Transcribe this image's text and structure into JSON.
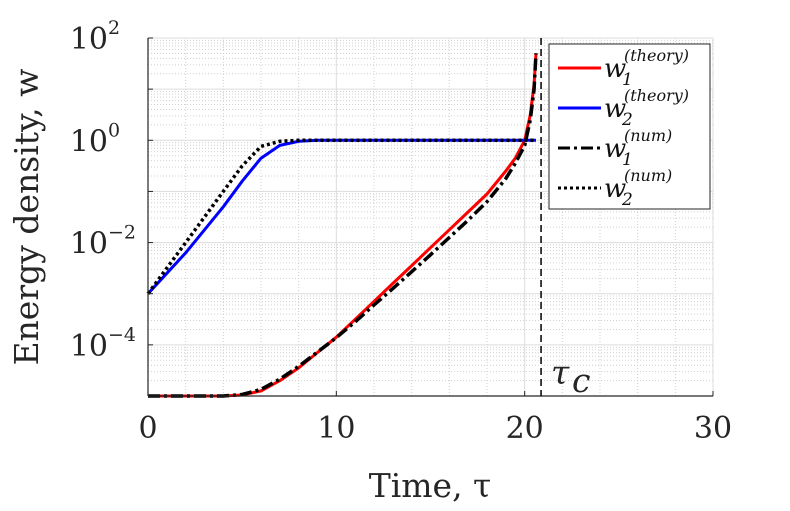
{
  "chart_data": {
    "type": "line",
    "xlabel": "Time, τ",
    "ylabel": "Energy density, w",
    "xlim": [
      0,
      30
    ],
    "ylim": [
      1e-05,
      100
    ],
    "yscale": "log",
    "grid": true,
    "xticks": [
      {
        "value": 0,
        "label": "0"
      },
      {
        "value": 10,
        "label": "10"
      },
      {
        "value": 20,
        "label": "20"
      },
      {
        "value": 30,
        "label": "30"
      }
    ],
    "yticks": [
      {
        "value": 100,
        "base": "10",
        "exp": "2"
      },
      {
        "value": 1,
        "base": "10",
        "exp": "0"
      },
      {
        "value": 0.01,
        "base": "10",
        "exp": "−2"
      },
      {
        "value": 0.0001,
        "base": "10",
        "exp": "−4"
      }
    ],
    "legend_position": "top-right",
    "annotation": {
      "label": "τ",
      "subscript": "c",
      "x": 20.87
    },
    "series": [
      {
        "name": "w1 (theory)",
        "sym": "w",
        "sub": "1",
        "sup": "(theory)",
        "color": "#ff0000",
        "style": "solid",
        "x": [
          0,
          1,
          2,
          3,
          4,
          5,
          6,
          7,
          8,
          9,
          10,
          11,
          12,
          13,
          14,
          15,
          16,
          17,
          18,
          19,
          19.5,
          20,
          20.3,
          20.5,
          20.6
        ],
        "log10_y": [
          -5,
          -5,
          -5,
          -5,
          -5,
          -4.98,
          -4.9,
          -4.7,
          -4.45,
          -4.15,
          -3.85,
          -3.5,
          -3.15,
          -2.8,
          -2.45,
          -2.1,
          -1.75,
          -1.4,
          -1.05,
          -0.6,
          -0.35,
          0.0,
          0.5,
          1.1,
          1.7
        ]
      },
      {
        "name": "w2 (theory)",
        "sym": "w",
        "sub": "2",
        "sup": "(theory)",
        "color": "#0000ff",
        "style": "solid",
        "x": [
          0,
          1,
          2,
          3,
          4,
          5,
          6,
          7,
          8,
          9,
          10,
          20.6
        ],
        "log10_y": [
          -3,
          -2.6,
          -2.2,
          -1.75,
          -1.3,
          -0.8,
          -0.35,
          -0.1,
          -0.02,
          0,
          0,
          0
        ]
      },
      {
        "name": "w1 (num)",
        "sym": "w",
        "sub": "1",
        "sup": "(num)",
        "color": "#000000",
        "style": "dashdot",
        "x": [
          0,
          1,
          2,
          3,
          4,
          5,
          6,
          7,
          8,
          9,
          10,
          11,
          12,
          13,
          14,
          15,
          16,
          17,
          18,
          19,
          19.5,
          20,
          20.3,
          20.5,
          20.6
        ],
        "log10_y": [
          -5,
          -5,
          -5,
          -5,
          -5,
          -4.97,
          -4.87,
          -4.67,
          -4.42,
          -4.14,
          -3.86,
          -3.55,
          -3.22,
          -2.9,
          -2.57,
          -2.24,
          -1.9,
          -1.56,
          -1.2,
          -0.75,
          -0.45,
          -0.1,
          0.4,
          1.0,
          1.7
        ]
      },
      {
        "name": "w2 (num)",
        "sym": "w",
        "sub": "2",
        "sup": "(num)",
        "color": "#000000",
        "style": "dotted",
        "x": [
          0,
          1,
          2,
          3,
          4,
          5,
          6,
          7,
          8,
          9,
          10,
          20.6
        ],
        "log10_y": [
          -3,
          -2.5,
          -2.0,
          -1.5,
          -1.0,
          -0.5,
          -0.12,
          -0.02,
          0,
          0,
          0,
          0
        ]
      }
    ]
  }
}
